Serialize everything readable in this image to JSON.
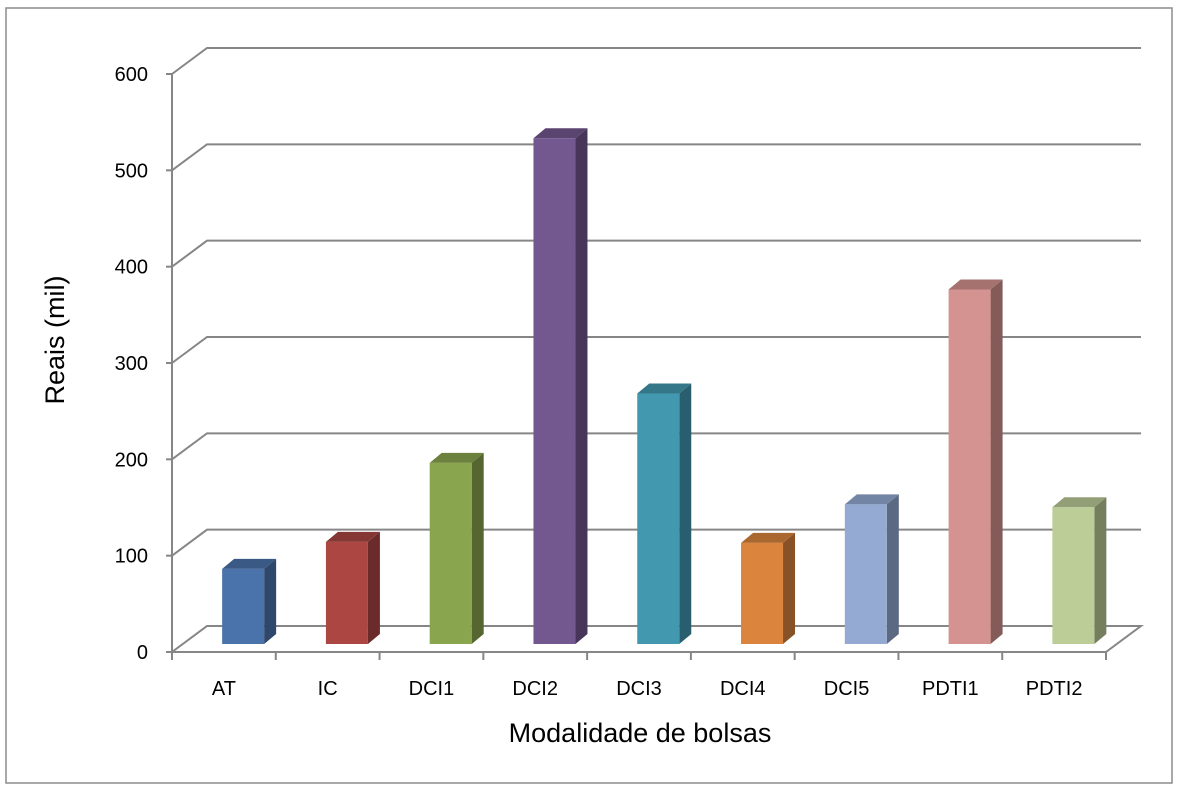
{
  "chart_data": {
    "type": "bar",
    "style": "3d-clustered-column",
    "title": "",
    "xlabel": "Modalidade de bolsas",
    "ylabel": "Reais (mil)",
    "categories": [
      "AT",
      "IC",
      "DCI1",
      "DCI2",
      "DCI3",
      "DCI4",
      "DCI5",
      "PDTI1",
      "PDTI2"
    ],
    "series": [
      {
        "values": [
          78,
          106,
          188,
          525,
          260,
          105,
          145,
          368,
          142
        ]
      }
    ],
    "colors": [
      "#4a72ab",
      "#ab4643",
      "#89a54e",
      "#73578f",
      "#4198af",
      "#db843d",
      "#94aad2",
      "#d49290",
      "#bccd98"
    ],
    "ylim": [
      0,
      600
    ],
    "yticks": [
      0,
      100,
      200,
      300,
      400,
      500,
      600
    ],
    "grid": true,
    "legend": "none"
  }
}
